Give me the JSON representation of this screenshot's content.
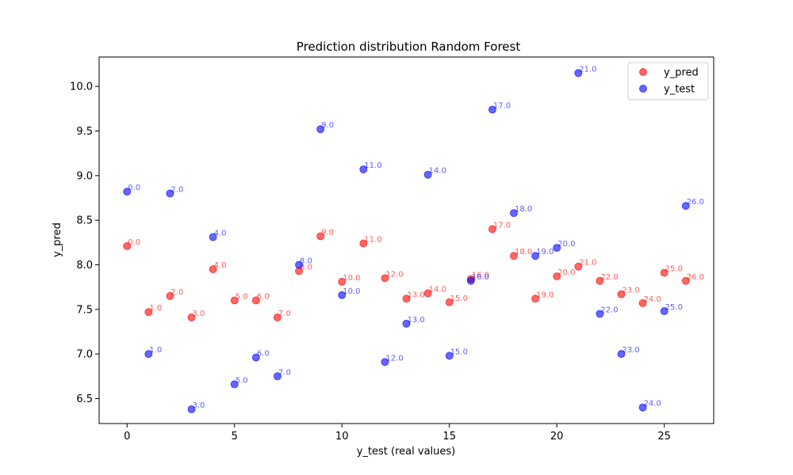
{
  "chart_data": {
    "type": "scatter",
    "title": "Prediction distribution Random Forest",
    "xlabel": "y_test (real values)",
    "ylabel": "y_pred",
    "xlim": [
      -1.3,
      27.3
    ],
    "ylim": [
      6.22,
      10.33
    ],
    "xticks": [
      0,
      5,
      10,
      15,
      20,
      25
    ],
    "yticks": [
      6.5,
      7.0,
      7.5,
      8.0,
      8.5,
      9.0,
      9.5,
      10.0
    ],
    "legend": {
      "placement": "top-right"
    },
    "grid": false,
    "series": [
      {
        "name": "y_pred",
        "color": "#ff0000",
        "x": [
          0,
          1,
          2,
          3,
          4,
          5,
          6,
          7,
          8,
          9,
          10,
          11,
          12,
          13,
          14,
          15,
          16,
          17,
          18,
          19,
          20,
          21,
          22,
          23,
          24,
          25,
          26
        ],
        "y": [
          8.21,
          7.47,
          7.65,
          7.41,
          7.95,
          7.6,
          7.6,
          7.41,
          7.93,
          8.32,
          7.81,
          8.24,
          7.85,
          7.62,
          7.68,
          7.58,
          7.84,
          8.4,
          8.1,
          7.62,
          7.87,
          7.98,
          7.82,
          7.67,
          7.57,
          7.91,
          7.82
        ],
        "labels": [
          "0.0",
          "1.0",
          "2.0",
          "3.0",
          "4.0",
          "5.0",
          "6.0",
          "7.0",
          "8.0",
          "9.0",
          "10.0",
          "11.0",
          "12.0",
          "13.0",
          "14.0",
          "15.0",
          "16.0",
          "17.0",
          "18.0",
          "19.0",
          "20.0",
          "21.0",
          "22.0",
          "23.0",
          "24.0",
          "25.0",
          "26.0"
        ]
      },
      {
        "name": "y_test",
        "color": "#0000ff",
        "x": [
          0,
          1,
          2,
          3,
          4,
          5,
          6,
          7,
          8,
          9,
          10,
          11,
          12,
          13,
          14,
          15,
          16,
          17,
          18,
          19,
          20,
          21,
          22,
          23,
          24,
          25,
          26
        ],
        "y": [
          8.82,
          7.0,
          8.8,
          6.38,
          8.31,
          6.66,
          6.96,
          6.75,
          8.0,
          9.52,
          7.66,
          9.07,
          6.91,
          7.34,
          9.01,
          6.98,
          7.82,
          9.74,
          8.58,
          8.1,
          8.19,
          10.15,
          7.45,
          7.0,
          6.4,
          7.48,
          8.66
        ],
        "labels": [
          "0.0",
          "1.0",
          "2.0",
          "3.0",
          "4.0",
          "5.0",
          "6.0",
          "7.0",
          "8.0",
          "9.0",
          "10.0",
          "11.0",
          "12.0",
          "13.0",
          "14.0",
          "15.0",
          "16.0",
          "17.0",
          "18.0",
          "19.0",
          "20.0",
          "21.0",
          "22.0",
          "23.0",
          "24.0",
          "25.0",
          "26.0"
        ]
      }
    ]
  }
}
